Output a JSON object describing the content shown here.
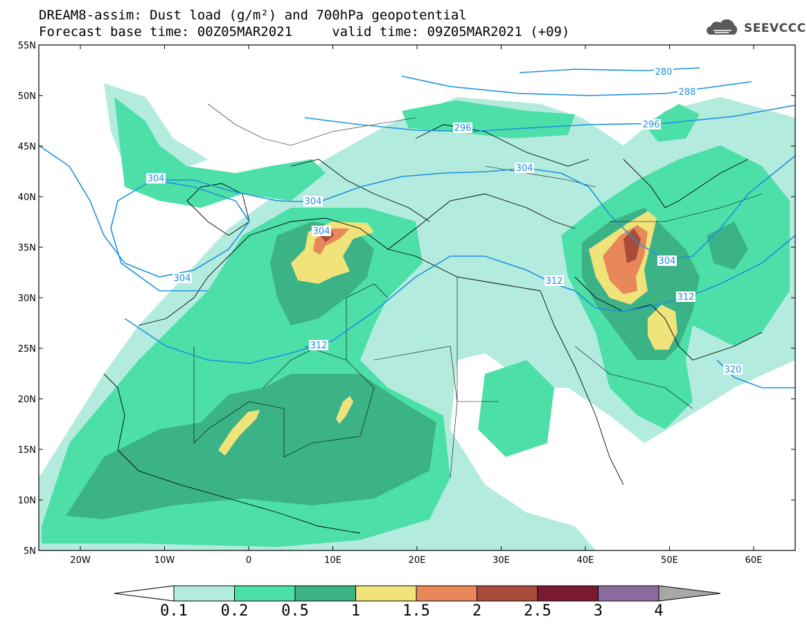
{
  "header": {
    "title_line1": "DREAM8-assim: Dust load (g/m²) and 700hPa geopotential",
    "title_line2": "Forecast base time: 00Z05MAR2021     valid time: 09Z05MAR2021 (+09)"
  },
  "logo": {
    "text": "SEEVCCC",
    "icon": "cloud-icon"
  },
  "map": {
    "lat_ticks": [
      "55N",
      "50N",
      "45N",
      "40N",
      "35N",
      "30N",
      "25N",
      "20N",
      "15N",
      "10N",
      "5N"
    ],
    "lon_ticks": [
      "20W",
      "10W",
      "0",
      "10E",
      "20E",
      "30E",
      "40E",
      "50E",
      "60E"
    ],
    "contour_labels": [
      "280",
      "288",
      "296",
      "296",
      "304",
      "304",
      "304",
      "304",
      "304",
      "304",
      "312",
      "312",
      "312",
      "320"
    ]
  },
  "colorbar": {
    "labels": [
      "0.1",
      "0.2",
      "0.5",
      "1",
      "1.5",
      "2",
      "2.5",
      "3",
      "4"
    ],
    "colors": [
      "#ffffff",
      "#b3ecde",
      "#4ddfa8",
      "#3cb387",
      "#f0e37a",
      "#e8875a",
      "#a94b3b",
      "#7a1a30",
      "#8b6b9e",
      "#a8a8a8"
    ]
  },
  "palette": {
    "contour": "#1e90e0",
    "border": "#000000",
    "level1": "#b3ecde",
    "level2": "#4ddfa8",
    "level3": "#3cb387",
    "level4": "#f0e37a",
    "level5": "#e8875a",
    "level6": "#a94b3b"
  }
}
